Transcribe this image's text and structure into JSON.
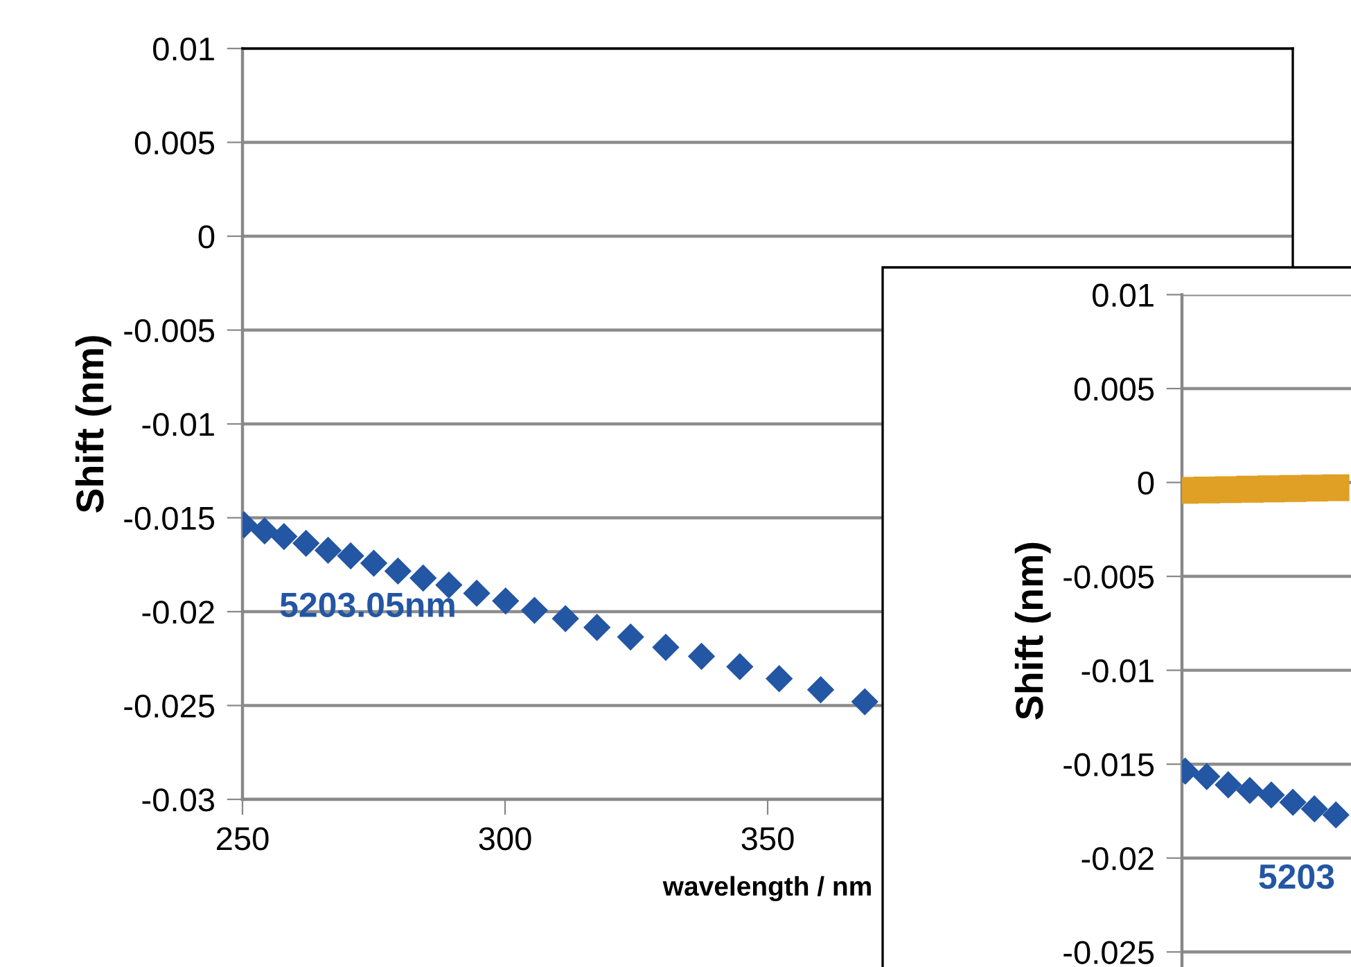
{
  "chart_data": [
    {
      "type": "scatter",
      "xlabel": "wavelength / nm",
      "ylabel": "Shift (nm)",
      "xlim": [
        250,
        450
      ],
      "xticks": [
        250,
        300,
        350
      ],
      "ylim": [
        -0.03,
        0.01
      ],
      "yticks": [
        0.01,
        0.005,
        0,
        -0.005,
        -0.01,
        -0.015,
        -0.02,
        -0.025,
        -0.03
      ],
      "grid": "y",
      "marker": "diamond",
      "annotations": [
        "5203.05nm"
      ],
      "series": [
        {
          "color": "#2356a3",
          "x": [
            250.3,
            254.2,
            257.9,
            262.1,
            266.3,
            270.6,
            275.0,
            279.6,
            284.4,
            289.3,
            294.6,
            300.1,
            305.6,
            311.5,
            317.5,
            323.9,
            330.6,
            337.4,
            344.7,
            352.2,
            360.1,
            368.5
          ],
          "values": [
            -0.01537,
            -0.0157,
            -0.016,
            -0.01636,
            -0.01673,
            -0.01703,
            -0.01742,
            -0.01784,
            -0.01821,
            -0.01858,
            -0.01902,
            -0.01943,
            -0.01993,
            -0.02037,
            -0.02084,
            -0.02135,
            -0.0219,
            -0.02238,
            -0.02293,
            -0.02357,
            -0.02416,
            -0.0248
          ]
        }
      ]
    },
    {
      "type": "scatter",
      "ylabel": "Shift (nm)",
      "categories": [
        null,
        null,
        null,
        null,
        null,
        null,
        null,
        null
      ],
      "ylim": [
        -0.0258,
        0.01
      ],
      "yticks": [
        0.01,
        0.005,
        0,
        -0.005,
        -0.01,
        -0.015,
        -0.02,
        -0.025
      ],
      "grid": "y",
      "tick_labels": "y",
      "annotations": [
        "5203"
      ],
      "series": [
        {
          "color": "#dfa025",
          "marker": "square",
          "values": [
            -0.00042,
            -0.0004,
            -0.00038,
            -0.00036,
            -0.00034,
            -0.00032,
            -0.0003,
            -0.00028
          ]
        },
        {
          "color": "#2356a3",
          "marker": "diamond",
          "values": [
            -0.01537,
            -0.01566,
            -0.0161,
            -0.0164,
            -0.01664,
            -0.01703,
            -0.01738,
            -0.0177
          ]
        }
      ]
    }
  ]
}
